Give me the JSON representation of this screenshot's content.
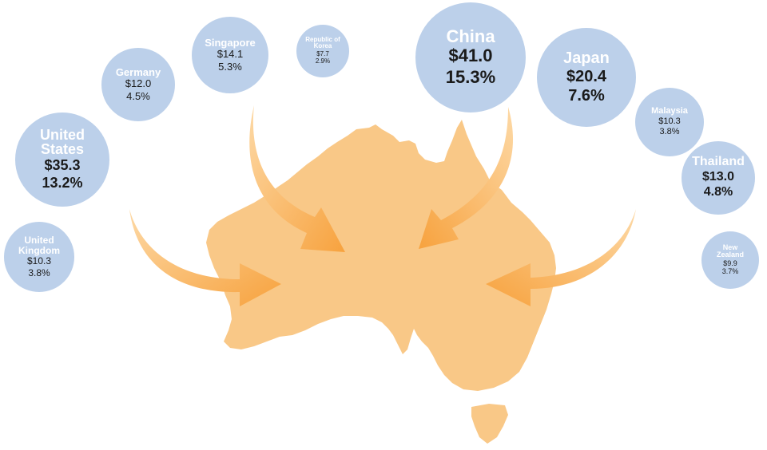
{
  "countries": [
    {
      "name": "China",
      "value": "$41.0",
      "share": "15.3%",
      "share_pct": 15.3
    },
    {
      "name": "United States",
      "value": "$35.3",
      "share": "13.2%",
      "share_pct": 13.2
    },
    {
      "name": "Japan",
      "value": "$20.4",
      "share": "7.6%",
      "share_pct": 7.6
    },
    {
      "name": "Singapore",
      "value": "$14.1",
      "share": "5.3%",
      "share_pct": 5.3
    },
    {
      "name": "Thailand",
      "value": "$13.0",
      "share": "4.8%",
      "share_pct": 4.8
    },
    {
      "name": "Germany",
      "value": "$12.0",
      "share": "4.5%",
      "share_pct": 4.5
    },
    {
      "name": "United Kingdom",
      "value": "$10.3",
      "share": "3.8%",
      "share_pct": 3.8
    },
    {
      "name": "Malaysia",
      "value": "$10.3",
      "share": "3.8%",
      "share_pct": 3.8
    },
    {
      "name": "New Zealand",
      "value": "$9.9",
      "share": "3.7%",
      "share_pct": 3.7
    },
    {
      "name": "Republic of Korea",
      "value": "$7.7",
      "share": "2.9%",
      "share_pct": 2.9
    }
  ],
  "colors": {
    "bubble": "#bcd0ea",
    "bubble_name": "#ffffff",
    "bubble_value": "#1a1a1a",
    "map": "#f9c887",
    "arrow": "#f7a23e",
    "arrow_light": "#fbd29a"
  },
  "icons": {
    "map": "australia-map-icon",
    "arrow": "inbound-arrow-icon"
  }
}
